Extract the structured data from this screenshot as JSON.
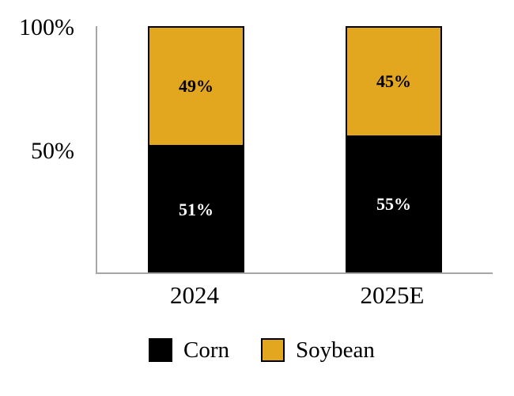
{
  "chart_data": {
    "type": "bar",
    "stacked": true,
    "title": "",
    "categories": [
      "2024",
      "2025E"
    ],
    "series": [
      {
        "name": "Corn",
        "color": "#000000",
        "label_color": "#FFFFFF",
        "values": [
          51,
          55
        ]
      },
      {
        "name": "Soybean",
        "color": "#E2A71E",
        "label_color": "#000000",
        "values": [
          49,
          45
        ]
      }
    ],
    "value_suffix": "%",
    "ylim": [
      0,
      100
    ],
    "yticks": [
      {
        "value": 100,
        "label": "100%"
      },
      {
        "value": 50,
        "label": "50%"
      }
    ],
    "grid": false,
    "legend_position": "bottom"
  },
  "legend": {
    "items": [
      {
        "label": "Corn",
        "color": "#000000"
      },
      {
        "label": "Soybean",
        "color": "#E2A71E"
      }
    ]
  },
  "colors": {
    "background": "#FFFFFF",
    "axis": "#A6A6A6",
    "bar_border": "#000000"
  }
}
